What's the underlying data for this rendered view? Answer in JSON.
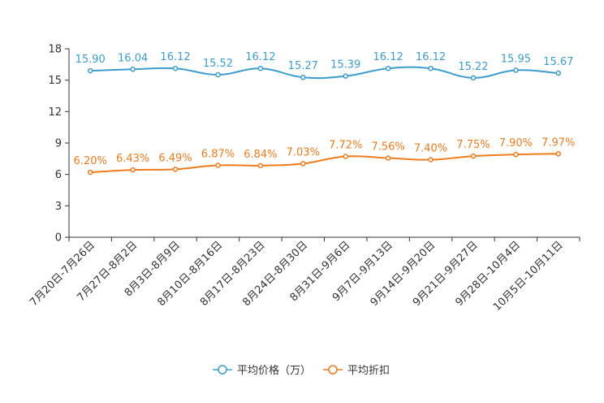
{
  "chart_data": {
    "type": "line",
    "title": "",
    "xlabel": "",
    "ylabel": "",
    "ylim": [
      0,
      18
    ],
    "yticks": [
      0,
      3,
      6,
      9,
      12,
      15,
      18
    ],
    "grid": false,
    "legend_position": "bottom",
    "categories": [
      "7月20日-7月26日",
      "7月27日-8月2日",
      "8月3日-8月9日",
      "8月10日-8月16日",
      "8月17日-8月23日",
      "8月24日-8月30日",
      "8月31日-9月6日",
      "9月7日-9月13日",
      "9月14日-9月20日",
      "9月21日-9月27日",
      "9月28日-10月4日",
      "10月5日-10月11日"
    ],
    "series": [
      {
        "name": "平均价格（万）",
        "color": "#3c9dd0",
        "values": [
          15.9,
          16.04,
          16.12,
          15.52,
          16.12,
          15.27,
          15.39,
          16.12,
          16.12,
          15.22,
          15.95,
          15.67
        ],
        "labels": [
          "15.90",
          "16.04",
          "16.12",
          "15.52",
          "16.12",
          "15.27",
          "15.39",
          "16.12",
          "16.12",
          "15.22",
          "15.95",
          "15.67"
        ]
      },
      {
        "name": "平均折扣",
        "color": "#f07b1c",
        "values": [
          6.2,
          6.43,
          6.49,
          6.87,
          6.84,
          7.03,
          7.72,
          7.56,
          7.4,
          7.75,
          7.9,
          7.97
        ],
        "labels": [
          "6.20%",
          "6.43%",
          "6.49%",
          "6.87%",
          "6.84%",
          "7.03%",
          "7.72%",
          "7.56%",
          "7.40%",
          "7.75%",
          "7.90%",
          "7.97%"
        ]
      }
    ]
  }
}
